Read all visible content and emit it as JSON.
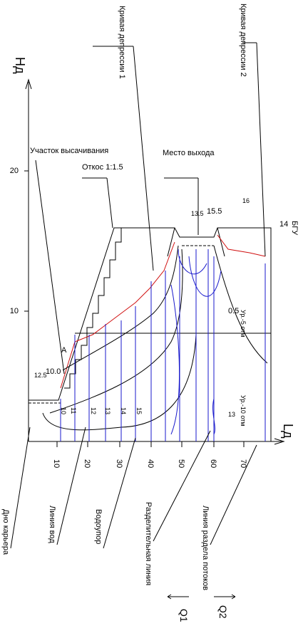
{
  "labels": {
    "curve1": "Кривая депрессии 1",
    "curve2": "Кривая депрессии 2",
    "y_axis": "Нд",
    "x_axis": "Lд",
    "seepage": "Участок высачивания",
    "slope": "Откос 1:1.5",
    "outlet": "Место выхода",
    "bgu": "БГУ",
    "mark_14": "14",
    "mark_16": "16",
    "mark_155": "15.5",
    "mark_135": "13.5",
    "mark_125": "12.5",
    "mark_100": "10.0",
    "mark_a": "A",
    "mark_05": "0.5",
    "mark_13": "13",
    "level5": "Ур.-5 отм",
    "level10": "Ур.-10 отм",
    "q1": "Q1",
    "q2": "Q2"
  },
  "y_ticks": [
    "20",
    "10"
  ],
  "x_ticks": [
    "10",
    "20",
    "30",
    "40",
    "50",
    "60",
    "70"
  ],
  "equipotentials": [
    "10",
    "11",
    "12",
    "13",
    "14",
    "15"
  ],
  "bottom_labels": [
    "Дно карьера",
    "Линия вод",
    "Водоупор",
    "Разделительная линия",
    "Линия раздела потоков"
  ]
}
